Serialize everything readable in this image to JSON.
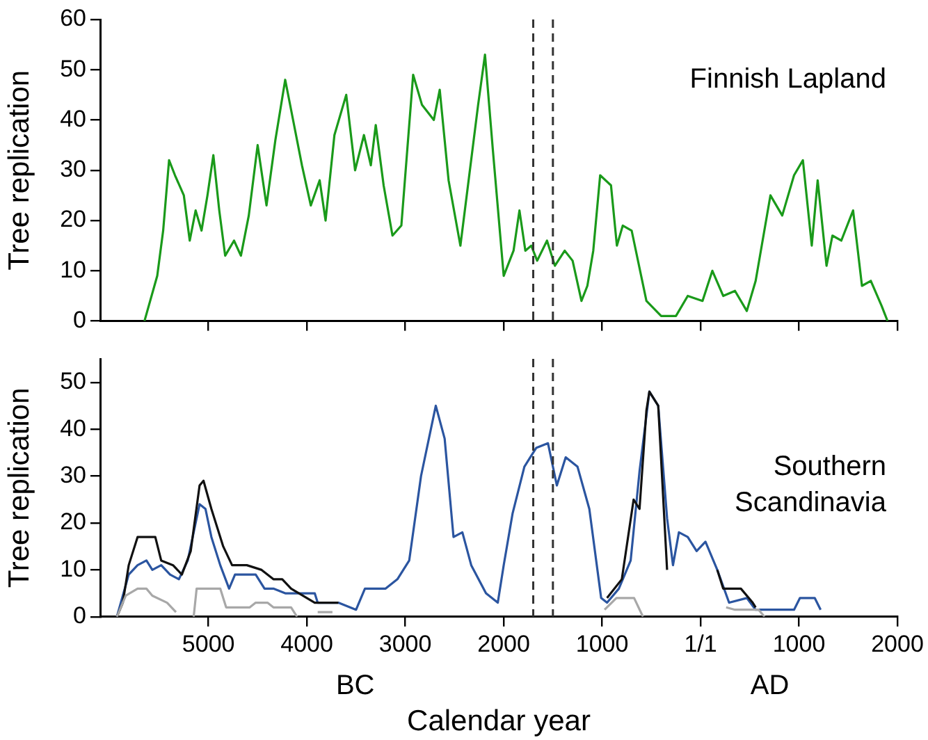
{
  "chart_data": [
    {
      "type": "line",
      "ylabel": "Tree replication",
      "annotations": [
        "Finnish Lapland"
      ],
      "xlim": [
        -6100,
        2000
      ],
      "xticks": [
        {
          "value": -5000,
          "label": null
        },
        {
          "value": -4000,
          "label": null
        },
        {
          "value": -3000,
          "label": null
        },
        {
          "value": -2000,
          "label": null
        },
        {
          "value": -1000,
          "label": null
        },
        {
          "value": 0,
          "label": null
        },
        {
          "value": 1000,
          "label": null
        },
        {
          "value": 2000,
          "label": null
        }
      ],
      "ylim": [
        0,
        60
      ],
      "yticks": [
        0,
        10,
        20,
        30,
        40,
        50,
        60
      ],
      "tick_labels": "y",
      "grid": false,
      "marker": "none",
      "line_style": "solid",
      "ref_lines": [
        {
          "axis": "x",
          "value": -1700,
          "color": "#333333",
          "line_style": "dashed"
        },
        {
          "axis": "x",
          "value": -1500,
          "color": "#333333",
          "line_style": "dashed"
        }
      ],
      "series": [
        {
          "color": "#1a9a1a",
          "x": [
            -5650,
            -5520,
            -5460,
            -5400,
            -5340,
            -5250,
            -5190,
            -5130,
            -5070,
            -5010,
            -4950,
            -4890,
            -4830,
            -4740,
            -4670,
            -4590,
            -4500,
            -4410,
            -4320,
            -4220,
            -4140,
            -4050,
            -3960,
            -3870,
            -3810,
            -3720,
            -3600,
            -3510,
            -3420,
            -3350,
            -3300,
            -3220,
            -3130,
            -3040,
            -2920,
            -2830,
            -2710,
            -2650,
            -2560,
            -2440,
            -2350,
            -2260,
            -2190,
            -2110,
            -2000,
            -1900,
            -1840,
            -1780,
            -1720,
            -1660,
            -1560,
            -1480,
            -1380,
            -1300,
            -1210,
            -1150,
            -1090,
            -1020,
            -910,
            -850,
            -790,
            -700,
            -550,
            -400,
            -250,
            -130,
            20,
            120,
            230,
            350,
            470,
            560,
            710,
            830,
            950,
            1040,
            1130,
            1190,
            1280,
            1340,
            1430,
            1550,
            1640,
            1730,
            1840,
            1900
          ],
          "values": [
            0,
            9,
            18,
            32,
            29,
            25,
            16,
            22,
            18,
            25,
            33,
            22,
            13,
            16,
            13,
            21,
            35,
            23,
            36,
            48,
            40,
            31,
            23,
            28,
            20,
            37,
            45,
            30,
            37,
            31,
            39,
            27,
            17,
            19,
            49,
            43,
            40,
            46,
            28,
            15,
            29,
            43,
            53,
            34,
            9,
            14,
            22,
            14,
            15,
            12,
            16,
            11,
            14,
            12,
            4,
            7,
            14,
            29,
            27,
            15,
            19,
            18,
            4,
            1,
            1,
            5,
            4,
            10,
            5,
            6,
            2,
            8,
            25,
            21,
            29,
            32,
            15,
            28,
            11,
            17,
            16,
            22,
            7,
            8,
            3,
            0
          ]
        }
      ]
    },
    {
      "type": "line",
      "xlabel": "Calendar year",
      "ylabel": "Tree replication",
      "annotations": [
        "Southern\nScandinavia",
        "BC",
        "AD"
      ],
      "xlim": [
        -6100,
        2000
      ],
      "xticks": [
        {
          "value": -5000,
          "label": "5000"
        },
        {
          "value": -4000,
          "label": "4000"
        },
        {
          "value": -3000,
          "label": "3000"
        },
        {
          "value": -2000,
          "label": "2000"
        },
        {
          "value": -1000,
          "label": "1000"
        },
        {
          "value": 0,
          "label": "1/1"
        },
        1000,
        2000
      ],
      "ylim": [
        0,
        55
      ],
      "yticks": [
        0,
        10,
        20,
        30,
        40,
        50
      ],
      "grid": false,
      "marker": "none",
      "line_style": "solid",
      "ref_lines": [
        {
          "axis": "x",
          "value": -1700,
          "color": "#333333",
          "line_style": "dashed"
        },
        {
          "axis": "x",
          "value": -1500,
          "color": "#333333",
          "line_style": "dashed"
        }
      ],
      "series": [
        {
          "color": "#a8a8a8",
          "x": [
            -5930,
            -5840,
            -5720,
            -5630,
            -5570,
            -5420,
            -5330,
            -5240,
            -5150,
            -5120,
            -4880,
            -4820,
            -4580,
            -4520,
            -4400,
            -4340,
            -4160,
            -4100,
            -4000,
            -3890,
            -3740,
            -3700,
            -975,
            -855,
            -675,
            -585,
            -500,
            260,
            350,
            590,
            650
          ],
          "values": [
            0,
            4.5,
            6,
            6,
            4.5,
            3,
            1,
            null,
            0,
            6,
            6,
            2,
            2,
            3,
            3,
            2,
            2,
            0,
            null,
            1,
            1,
            null,
            1.5,
            4,
            4,
            0,
            null,
            2,
            1.5,
            1.5,
            0
          ]
        },
        {
          "color": "#111111",
          "x": [
            -5930,
            -5870,
            -5810,
            -5720,
            -5540,
            -5480,
            -5360,
            -5270,
            -5180,
            -5090,
            -5050,
            -4970,
            -4850,
            -4760,
            -4610,
            -4460,
            -4340,
            -4250,
            -4160,
            -3920,
            -3680,
            -3600,
            -950,
            -800,
            -680,
            -620,
            -550,
            -520,
            -430,
            -340,
            -280,
            0,
            170,
            230,
            410,
            530,
            560
          ],
          "values": [
            0,
            3,
            11,
            17,
            17,
            12,
            11,
            9,
            14,
            28,
            29,
            23,
            15,
            11,
            11,
            10,
            8,
            8,
            6,
            3,
            3,
            null,
            4,
            8,
            25,
            23,
            44,
            48,
            45,
            10,
            null,
            null,
            10,
            6,
            6,
            3,
            2
          ]
        },
        {
          "color": "#2b55a0",
          "x": [
            -5930,
            -5870,
            -5810,
            -5720,
            -5630,
            -5570,
            -5480,
            -5390,
            -5300,
            -5210,
            -5150,
            -5090,
            -5030,
            -4970,
            -4880,
            -4790,
            -4730,
            -4640,
            -4520,
            -4430,
            -4340,
            -4220,
            -3920,
            -3890,
            -3680,
            -3500,
            -3410,
            -3200,
            -3080,
            -2960,
            -2840,
            -2690,
            -2600,
            -2510,
            -2420,
            -2330,
            -2180,
            -2060,
            -2000,
            -1910,
            -1790,
            -1670,
            -1550,
            -1460,
            -1370,
            -1250,
            -1130,
            -1010,
            -950,
            -830,
            -710,
            -620,
            -520,
            -430,
            -340,
            -280,
            -220,
            -130,
            -40,
            50,
            170,
            290,
            470,
            560,
            950,
            1010,
            1160,
            1220
          ],
          "values": [
            0,
            4.5,
            9,
            11,
            12,
            10,
            11,
            9,
            8,
            12,
            18,
            24,
            23,
            17,
            11,
            6,
            9,
            9,
            9,
            6,
            6,
            5,
            5,
            3,
            3,
            1.5,
            6,
            6,
            8,
            12,
            30,
            45,
            38,
            17,
            18,
            11,
            5,
            3,
            11,
            22,
            32,
            36,
            37,
            28,
            34,
            32,
            23,
            4,
            3,
            6,
            12,
            31,
            48,
            45,
            21,
            11,
            18,
            17,
            14,
            16,
            10,
            3,
            4,
            1.5,
            1.5,
            4,
            4,
            1.5
          ]
        }
      ]
    }
  ]
}
